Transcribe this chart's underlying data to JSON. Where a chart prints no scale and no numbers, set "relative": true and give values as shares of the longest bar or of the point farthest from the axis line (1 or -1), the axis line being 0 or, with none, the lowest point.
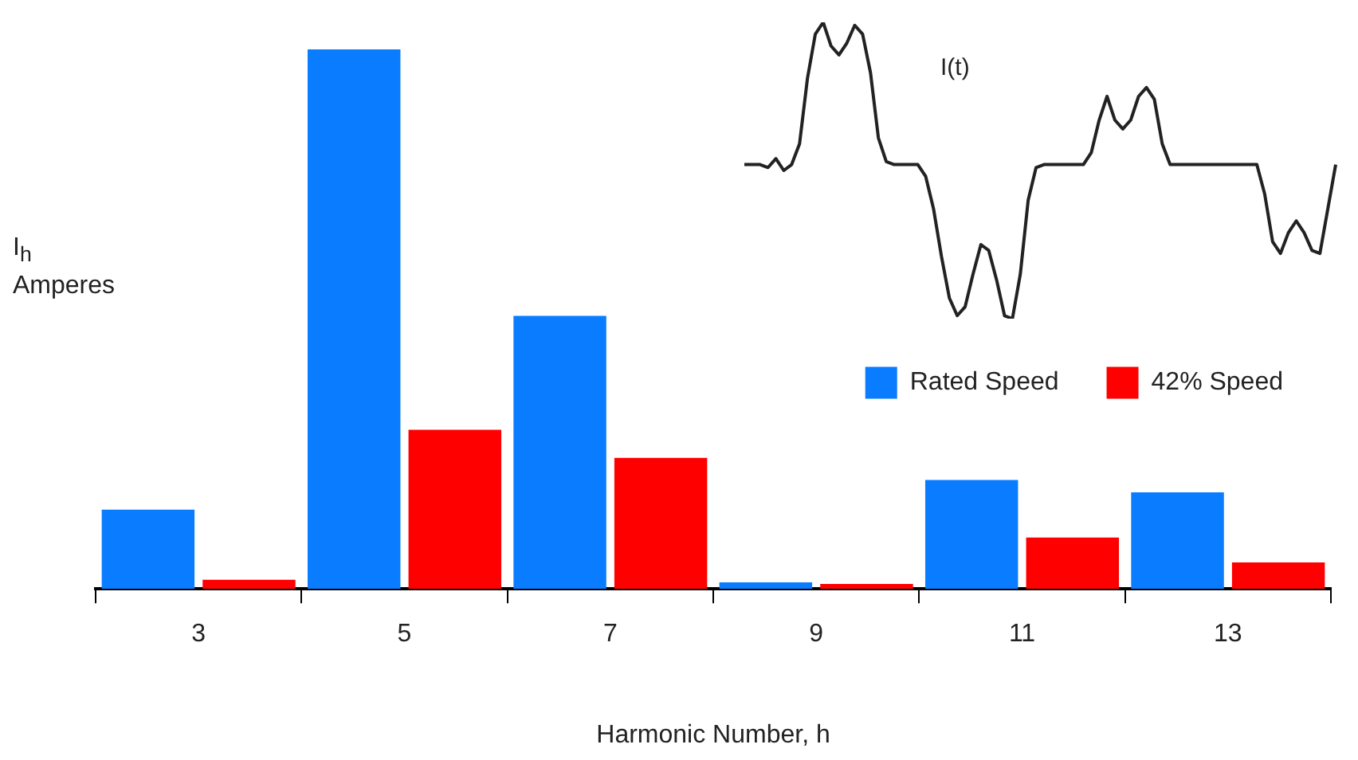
{
  "chart_data": [
    {
      "type": "bar",
      "relative": true,
      "xlabel": "Harmonic Number, h",
      "ylabel": "I$_{h}$\nAmperes",
      "categories": [
        "3",
        "5",
        "7",
        "9",
        "11",
        "13"
      ],
      "series": [
        {
          "name": "Rated Speed",
          "color": "#0a7cff",
          "values": [
            0.147,
            1,
            0.506,
            0.012,
            0.202,
            0.179
          ]
        },
        {
          "name": "42% Speed",
          "color": "#ff0000",
          "values": [
            0.017,
            0.295,
            0.243,
            0.009,
            0.095,
            0.049
          ]
        }
      ],
      "legend": "right",
      "grid": false
    },
    {
      "type": "line",
      "relative": true,
      "tick_labels": false,
      "marker": "none",
      "line_style": "solid",
      "annotations": [
        "I(t)"
      ],
      "categories": [
        null,
        null,
        null,
        null,
        null,
        null,
        null,
        null,
        null,
        null,
        null,
        null,
        null,
        null,
        null,
        null,
        null,
        null,
        null,
        null,
        null,
        null,
        null,
        null,
        null,
        null,
        null,
        null,
        null,
        null,
        null,
        null,
        null,
        null,
        null,
        null,
        null,
        null,
        null,
        null,
        null,
        null,
        null,
        null,
        null,
        null,
        null,
        null,
        null,
        null,
        null,
        null,
        null,
        null,
        null,
        null,
        null,
        null,
        null,
        null,
        null,
        null,
        null,
        null,
        null,
        null,
        null,
        null,
        null,
        null,
        null,
        null,
        null,
        null,
        null,
        null
      ],
      "series": [
        {
          "color": "#222222",
          "values": [
            0.52,
            0.52,
            0.52,
            0.51,
            0.54,
            0.5,
            0.52,
            0.59,
            0.81,
            0.96,
            1,
            0.92,
            0.89,
            0.93,
            0.99,
            0.96,
            0.83,
            0.61,
            0.53,
            0.52,
            0.52,
            0.52,
            0.52,
            0.48,
            0.37,
            0.21,
            0.07,
            0.01,
            0.04,
            0.15,
            0.25,
            0.23,
            0.13,
            0.01,
            0,
            0.15,
            0.4,
            0.51,
            0.52,
            0.52,
            0.52,
            0.52,
            0.52,
            0.52,
            0.56,
            0.67,
            0.75,
            0.67,
            0.64,
            0.67,
            0.75,
            0.78,
            0.74,
            0.59,
            0.52,
            0.52,
            0.52,
            0.52,
            0.52,
            0.52,
            0.52,
            0.52,
            0.52,
            0.52,
            0.52,
            0.52,
            0.42,
            0.26,
            0.22,
            0.29,
            0.33,
            0.29,
            0.23,
            0.22,
            0.37,
            0.52
          ]
        }
      ]
    }
  ]
}
